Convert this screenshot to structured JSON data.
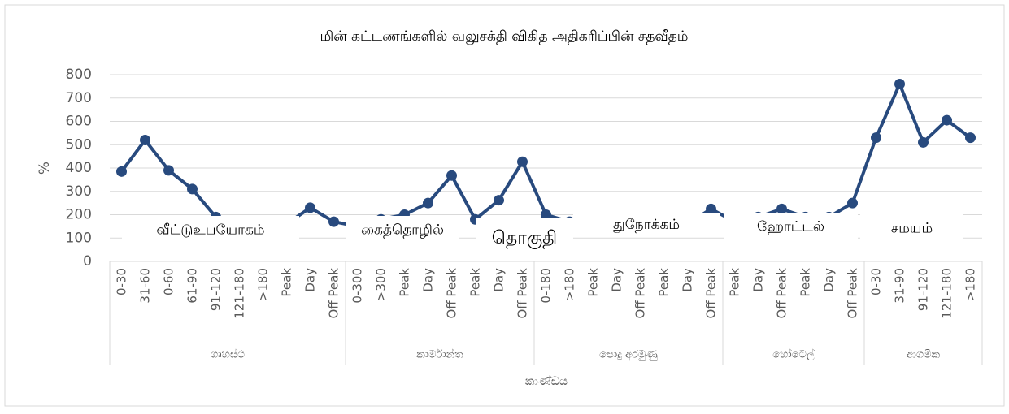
{
  "chart_data": {
    "type": "line",
    "title": "மின் கட்டணங்களில் வலுசக்தி விகித அதிகரிப்பின் சதவீதம்",
    "y_label": "%",
    "x_label": "කාණ්ඩය",
    "groups": [
      {
        "name": "ගෘහස්ථ",
        "categories": [
          "0-30",
          "31-60",
          "0-60",
          "61-90",
          "91-120",
          "121-180",
          ">180",
          "Peak",
          "Day",
          "Off Peak"
        ]
      },
      {
        "name": "කාර්මාන්ත",
        "categories": [
          "0-300",
          ">300",
          "Peak",
          "Day",
          "Off Peak",
          "Peak",
          "Day",
          "Off Peak"
        ]
      },
      {
        "name": "පොදු අරමුණු",
        "categories": [
          "0-180",
          ">180",
          "Peak",
          "Day",
          "Off Peak",
          "Peak",
          "Day",
          "Off Peak"
        ]
      },
      {
        "name": "හෝටෙල්",
        "categories": [
          "Peak",
          "Day",
          "Off Peak",
          "Peak",
          "Day",
          "Off Peak"
        ]
      },
      {
        "name": "ආගමික",
        "categories": [
          "0-30",
          "31-90",
          "91-120",
          "121-180",
          ">180"
        ]
      }
    ],
    "series": [
      {
        "name": "%",
        "color": "#284a7e",
        "values": [
          385,
          520,
          390,
          310,
          190,
          160,
          150,
          160,
          230,
          170,
          150,
          180,
          200,
          250,
          368,
          180,
          262,
          427,
          200,
          170,
          170,
          170,
          160,
          160,
          160,
          225,
          170,
          190,
          225,
          190,
          190,
          250,
          530,
          760,
          510,
          605,
          530
        ]
      }
    ],
    "ylim": [
      0,
      800
    ],
    "yticks": [
      0,
      100,
      200,
      300,
      400,
      500,
      600,
      700,
      800
    ],
    "grid": true,
    "overlays": [
      "வீட்டுஉபயோகம்",
      "கைத்தொழில்",
      "துநோக்கம்",
      "ஹோட்டல்",
      "சமயம்",
      "தொகுதி"
    ]
  }
}
